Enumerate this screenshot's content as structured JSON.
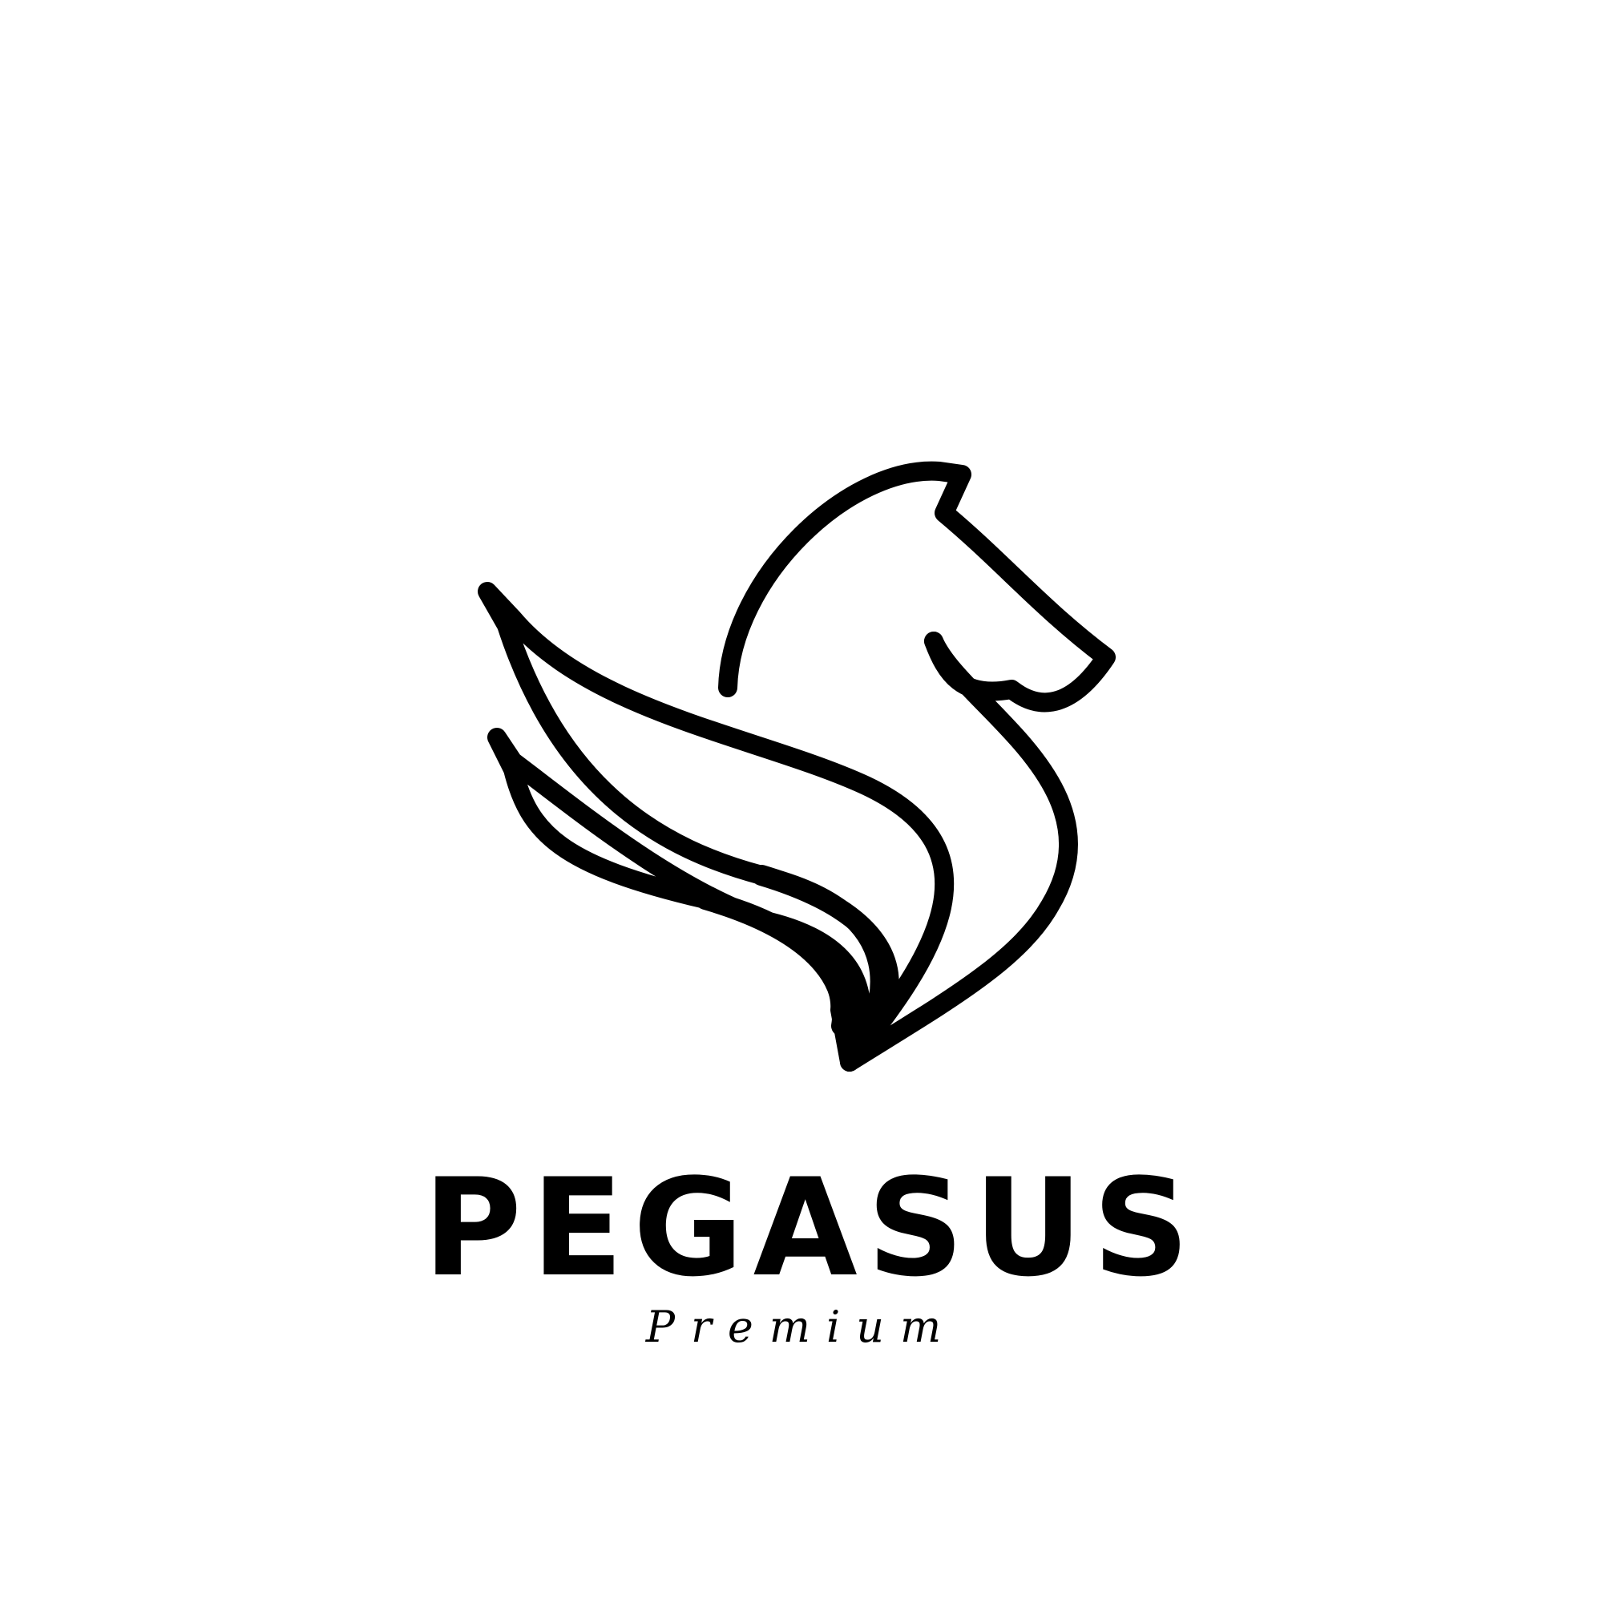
{
  "logo": {
    "brand_name": "PEGASUS",
    "tagline": "Premium",
    "icon": "pegasus-icon",
    "colors": {
      "ink": "#000000",
      "background": "#ffffff"
    }
  }
}
